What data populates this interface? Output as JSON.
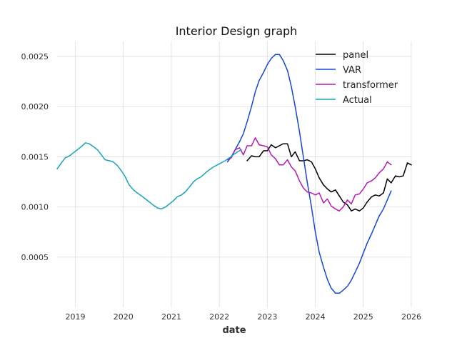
{
  "chart_data": {
    "type": "line",
    "title": "Interior Design graph",
    "xlabel": "date",
    "ylabel": "",
    "xlim": [
      2018.62,
      2026.0
    ],
    "ylim": [
      0.0,
      0.00265
    ],
    "grid": true,
    "legend_position": "top-right",
    "x_ticks": [
      {
        "value": 2019,
        "label": "2019"
      },
      {
        "value": 2020,
        "label": "2020"
      },
      {
        "value": 2021,
        "label": "2021"
      },
      {
        "value": 2022,
        "label": "2022"
      },
      {
        "value": 2023,
        "label": "2023"
      },
      {
        "value": 2024,
        "label": "2024"
      },
      {
        "value": 2025,
        "label": "2025"
      },
      {
        "value": 2026,
        "label": "2026"
      }
    ],
    "y_ticks": [
      {
        "value": 0.0005,
        "label": "0.0005"
      },
      {
        "value": 0.001,
        "label": "0.0010"
      },
      {
        "value": 0.0015,
        "label": "0.0015"
      },
      {
        "value": 0.002,
        "label": "0.0020"
      },
      {
        "value": 0.0025,
        "label": "0.0025"
      }
    ],
    "series": [
      {
        "name": "panel",
        "color": "#000000",
        "x": [
          2022.58,
          2022.67,
          2022.75,
          2022.83,
          2022.92,
          2023.0,
          2023.08,
          2023.17,
          2023.25,
          2023.33,
          2023.42,
          2023.5,
          2023.58,
          2023.67,
          2023.75,
          2023.83,
          2023.92,
          2024.0,
          2024.08,
          2024.17,
          2024.25,
          2024.33,
          2024.42,
          2024.5,
          2024.58,
          2024.67,
          2024.75,
          2024.83,
          2024.92,
          2025.0,
          2025.08,
          2025.17,
          2025.25,
          2025.33,
          2025.42,
          2025.5,
          2025.58,
          2025.67,
          2025.75,
          2025.83,
          2025.92,
          2026.0
        ],
        "y": [
          0.00146,
          0.00151,
          0.0015,
          0.0015,
          0.00156,
          0.00156,
          0.00162,
          0.00159,
          0.00161,
          0.00163,
          0.00163,
          0.0015,
          0.00155,
          0.00146,
          0.00146,
          0.00147,
          0.00145,
          0.00138,
          0.00129,
          0.00122,
          0.00118,
          0.00115,
          0.00117,
          0.00111,
          0.00105,
          0.00102,
          0.00096,
          0.00098,
          0.00096,
          0.00099,
          0.00105,
          0.0011,
          0.00112,
          0.00111,
          0.00114,
          0.00128,
          0.00124,
          0.00131,
          0.0013,
          0.00131,
          0.00144,
          0.00142
        ]
      },
      {
        "name": "VAR",
        "color": "#1746d6",
        "x": [
          2022.17,
          2022.25,
          2022.33,
          2022.42,
          2022.5,
          2022.58,
          2022.67,
          2022.75,
          2022.83,
          2022.92,
          2023.0,
          2023.08,
          2023.17,
          2023.25,
          2023.33,
          2023.42,
          2023.5,
          2023.58,
          2023.67,
          2023.75,
          2023.83,
          2023.92,
          2024.0,
          2024.08,
          2024.17,
          2024.25,
          2024.33,
          2024.42,
          2024.5,
          2024.58,
          2024.67,
          2024.75,
          2024.83,
          2024.92,
          2025.0,
          2025.08,
          2025.17,
          2025.25,
          2025.33,
          2025.42,
          2025.5,
          2025.58
        ],
        "y": [
          0.00145,
          0.0015,
          0.00157,
          0.00165,
          0.00173,
          0.00185,
          0.002,
          0.00215,
          0.00226,
          0.00234,
          0.00242,
          0.00248,
          0.00252,
          0.00252,
          0.00246,
          0.00236,
          0.0022,
          0.002,
          0.00175,
          0.0015,
          0.00125,
          0.001,
          0.00075,
          0.00055,
          0.0004,
          0.00028,
          0.00019,
          0.00014,
          0.00014,
          0.00017,
          0.00021,
          0.00027,
          0.00035,
          0.00044,
          0.00054,
          0.00064,
          0.00073,
          0.00082,
          0.00091,
          0.00098,
          0.00107,
          0.00116
        ]
      },
      {
        "name": "transformer",
        "color": "#b519b5",
        "x": [
          2022.17,
          2022.25,
          2022.33,
          2022.42,
          2022.5,
          2022.58,
          2022.67,
          2022.75,
          2022.83,
          2022.92,
          2023.0,
          2023.08,
          2023.17,
          2023.25,
          2023.33,
          2023.42,
          2023.5,
          2023.58,
          2023.67,
          2023.75,
          2023.83,
          2023.92,
          2024.0,
          2024.08,
          2024.17,
          2024.25,
          2024.33,
          2024.42,
          2024.5,
          2024.58,
          2024.67,
          2024.75,
          2024.83,
          2024.92,
          2025.0,
          2025.08,
          2025.17,
          2025.25,
          2025.33,
          2025.42,
          2025.5,
          2025.58
        ],
        "y": [
          0.00147,
          0.00149,
          0.00157,
          0.00159,
          0.00152,
          0.00161,
          0.00161,
          0.00169,
          0.00162,
          0.00161,
          0.0016,
          0.00152,
          0.00148,
          0.00142,
          0.00142,
          0.00147,
          0.0014,
          0.00136,
          0.00126,
          0.00119,
          0.00115,
          0.00114,
          0.00112,
          0.00114,
          0.00104,
          0.00108,
          0.00101,
          0.00098,
          0.00096,
          0.001,
          0.00107,
          0.00103,
          0.00112,
          0.00113,
          0.00118,
          0.00124,
          0.00126,
          0.00129,
          0.00134,
          0.00138,
          0.00145,
          0.00142
        ]
      },
      {
        "name": "Actual",
        "color": "#17a5b8",
        "x": [
          2018.62,
          2018.71,
          2018.79,
          2018.88,
          2018.96,
          2019.04,
          2019.12,
          2019.21,
          2019.29,
          2019.38,
          2019.46,
          2019.54,
          2019.62,
          2019.71,
          2019.79,
          2019.88,
          2019.96,
          2020.04,
          2020.12,
          2020.21,
          2020.29,
          2020.38,
          2020.46,
          2020.54,
          2020.62,
          2020.71,
          2020.79,
          2020.88,
          2020.96,
          2021.04,
          2021.12,
          2021.21,
          2021.29,
          2021.38,
          2021.46,
          2021.54,
          2021.62,
          2021.71,
          2021.79,
          2021.88,
          2021.96,
          2022.04,
          2022.12,
          2022.21,
          2022.29,
          2022.38,
          2022.46
        ],
        "y": [
          0.00138,
          0.00144,
          0.00149,
          0.00151,
          0.00154,
          0.00157,
          0.0016,
          0.00164,
          0.00163,
          0.0016,
          0.00157,
          0.00152,
          0.00147,
          0.00146,
          0.00145,
          0.00141,
          0.00136,
          0.0013,
          0.00122,
          0.00117,
          0.00114,
          0.00111,
          0.00108,
          0.00105,
          0.00102,
          0.00099,
          0.00098,
          0.001,
          0.00103,
          0.00106,
          0.0011,
          0.00112,
          0.00115,
          0.0012,
          0.00125,
          0.00128,
          0.0013,
          0.00134,
          0.00137,
          0.0014,
          0.00142,
          0.00144,
          0.00146,
          0.00149,
          0.00152,
          0.00155,
          0.00157
        ]
      }
    ]
  }
}
